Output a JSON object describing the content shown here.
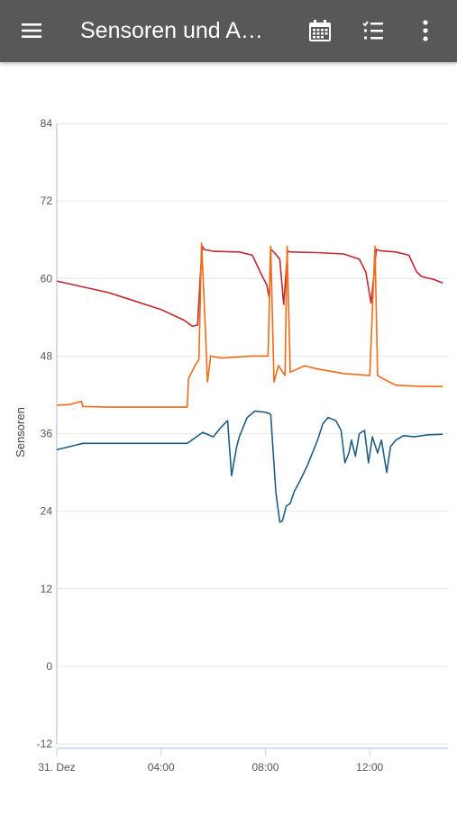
{
  "appbar": {
    "title": "Sensoren und A…",
    "icons": [
      "menu-icon",
      "calendar-icon",
      "list-icon",
      "more-vert-icon"
    ]
  },
  "colors": {
    "appbar_bg": "#585858",
    "series_red": "#c1272d",
    "series_orange": "#f26a15",
    "series_blue": "#1f5f82",
    "grid": "#e6e6e6",
    "axis": "#c8d2e6"
  },
  "chart_data": {
    "type": "line",
    "title": "",
    "ylabel": "Sensoren",
    "xlabel": "",
    "ylim": [
      -12,
      84
    ],
    "yticks": [
      -12,
      0,
      12,
      24,
      36,
      48,
      60,
      72,
      84
    ],
    "xlim_hours": [
      0,
      15
    ],
    "xticks": [
      {
        "label": "31. Dez",
        "hour": 0
      },
      {
        "label": "04:00",
        "hour": 4
      },
      {
        "label": "08:00",
        "hour": 8
      },
      {
        "label": "12:00",
        "hour": 12
      }
    ],
    "grid": true,
    "series": [
      {
        "color": "#c1272d",
        "points": [
          [
            0,
            59.6
          ],
          [
            2,
            57.8
          ],
          [
            4,
            55.2
          ],
          [
            4.9,
            53.5
          ],
          [
            5.2,
            52.6
          ],
          [
            5.4,
            52.8
          ],
          [
            5.5,
            60
          ],
          [
            5.58,
            65
          ],
          [
            5.65,
            64.5
          ],
          [
            6,
            64.2
          ],
          [
            7,
            64.1
          ],
          [
            7.5,
            63.6
          ],
          [
            7.8,
            61
          ],
          [
            8.05,
            59
          ],
          [
            8.15,
            57
          ],
          [
            8.2,
            64.5
          ],
          [
            8.3,
            64.2
          ],
          [
            8.55,
            63
          ],
          [
            8.7,
            56
          ],
          [
            8.85,
            64.2
          ],
          [
            9,
            64.1
          ],
          [
            10,
            64
          ],
          [
            11,
            63.8
          ],
          [
            11.6,
            63
          ],
          [
            11.85,
            61
          ],
          [
            12.05,
            56.2
          ],
          [
            12.15,
            60
          ],
          [
            12.25,
            64.5
          ],
          [
            12.4,
            64.3
          ],
          [
            13,
            64.1
          ],
          [
            13.5,
            63.6
          ],
          [
            13.8,
            61
          ],
          [
            14,
            60.3
          ],
          [
            14.5,
            59.8
          ],
          [
            14.8,
            59.3
          ]
        ]
      },
      {
        "color": "#f26a15",
        "points": [
          [
            0,
            40.4
          ],
          [
            0.5,
            40.5
          ],
          [
            0.95,
            41
          ],
          [
            1,
            40.2
          ],
          [
            2,
            40.1
          ],
          [
            4,
            40.1
          ],
          [
            5,
            40.1
          ],
          [
            5.05,
            44.5
          ],
          [
            5.3,
            46.5
          ],
          [
            5.45,
            47.5
          ],
          [
            5.55,
            65.5
          ],
          [
            5.7,
            52
          ],
          [
            5.78,
            44
          ],
          [
            5.9,
            48
          ],
          [
            6.3,
            47.7
          ],
          [
            7.5,
            48
          ],
          [
            8.1,
            48
          ],
          [
            8.2,
            65
          ],
          [
            8.33,
            44
          ],
          [
            8.5,
            46.5
          ],
          [
            8.75,
            45
          ],
          [
            8.83,
            65
          ],
          [
            8.95,
            45.5
          ],
          [
            9.5,
            46.5
          ],
          [
            10,
            46
          ],
          [
            11,
            45.3
          ],
          [
            12,
            45
          ],
          [
            12.2,
            65
          ],
          [
            12.3,
            45
          ],
          [
            12.5,
            44.5
          ],
          [
            13,
            43.5
          ],
          [
            14,
            43.3
          ],
          [
            14.8,
            43.3
          ]
        ]
      },
      {
        "color": "#1f5f82",
        "points": [
          [
            0,
            33.5
          ],
          [
            0.5,
            34
          ],
          [
            1,
            34.5
          ],
          [
            3,
            34.5
          ],
          [
            5,
            34.5
          ],
          [
            5.6,
            36.2
          ],
          [
            6,
            35.5
          ],
          [
            6.3,
            37
          ],
          [
            6.55,
            38
          ],
          [
            6.7,
            29.5
          ],
          [
            6.9,
            34
          ],
          [
            7,
            35.5
          ],
          [
            7.3,
            38.5
          ],
          [
            7.6,
            39.5
          ],
          [
            8,
            39.3
          ],
          [
            8.2,
            39
          ],
          [
            8.4,
            27
          ],
          [
            8.55,
            22.3
          ],
          [
            8.65,
            22.5
          ],
          [
            8.8,
            24.8
          ],
          [
            8.95,
            25.2
          ],
          [
            9.1,
            27
          ],
          [
            9.3,
            28.5
          ],
          [
            9.6,
            31
          ],
          [
            10,
            35
          ],
          [
            10.2,
            37.5
          ],
          [
            10.4,
            38.5
          ],
          [
            10.7,
            38
          ],
          [
            10.9,
            36.5
          ],
          [
            11.05,
            31.5
          ],
          [
            11.2,
            33
          ],
          [
            11.3,
            35
          ],
          [
            11.45,
            32.5
          ],
          [
            11.6,
            36
          ],
          [
            11.8,
            36.5
          ],
          [
            11.95,
            31.5
          ],
          [
            12.1,
            35.5
          ],
          [
            12.3,
            33
          ],
          [
            12.45,
            35
          ],
          [
            12.65,
            30
          ],
          [
            12.8,
            34
          ],
          [
            13,
            35
          ],
          [
            13.3,
            35.7
          ],
          [
            13.7,
            35.5
          ],
          [
            14.2,
            35.8
          ],
          [
            14.8,
            35.9
          ]
        ]
      }
    ]
  }
}
